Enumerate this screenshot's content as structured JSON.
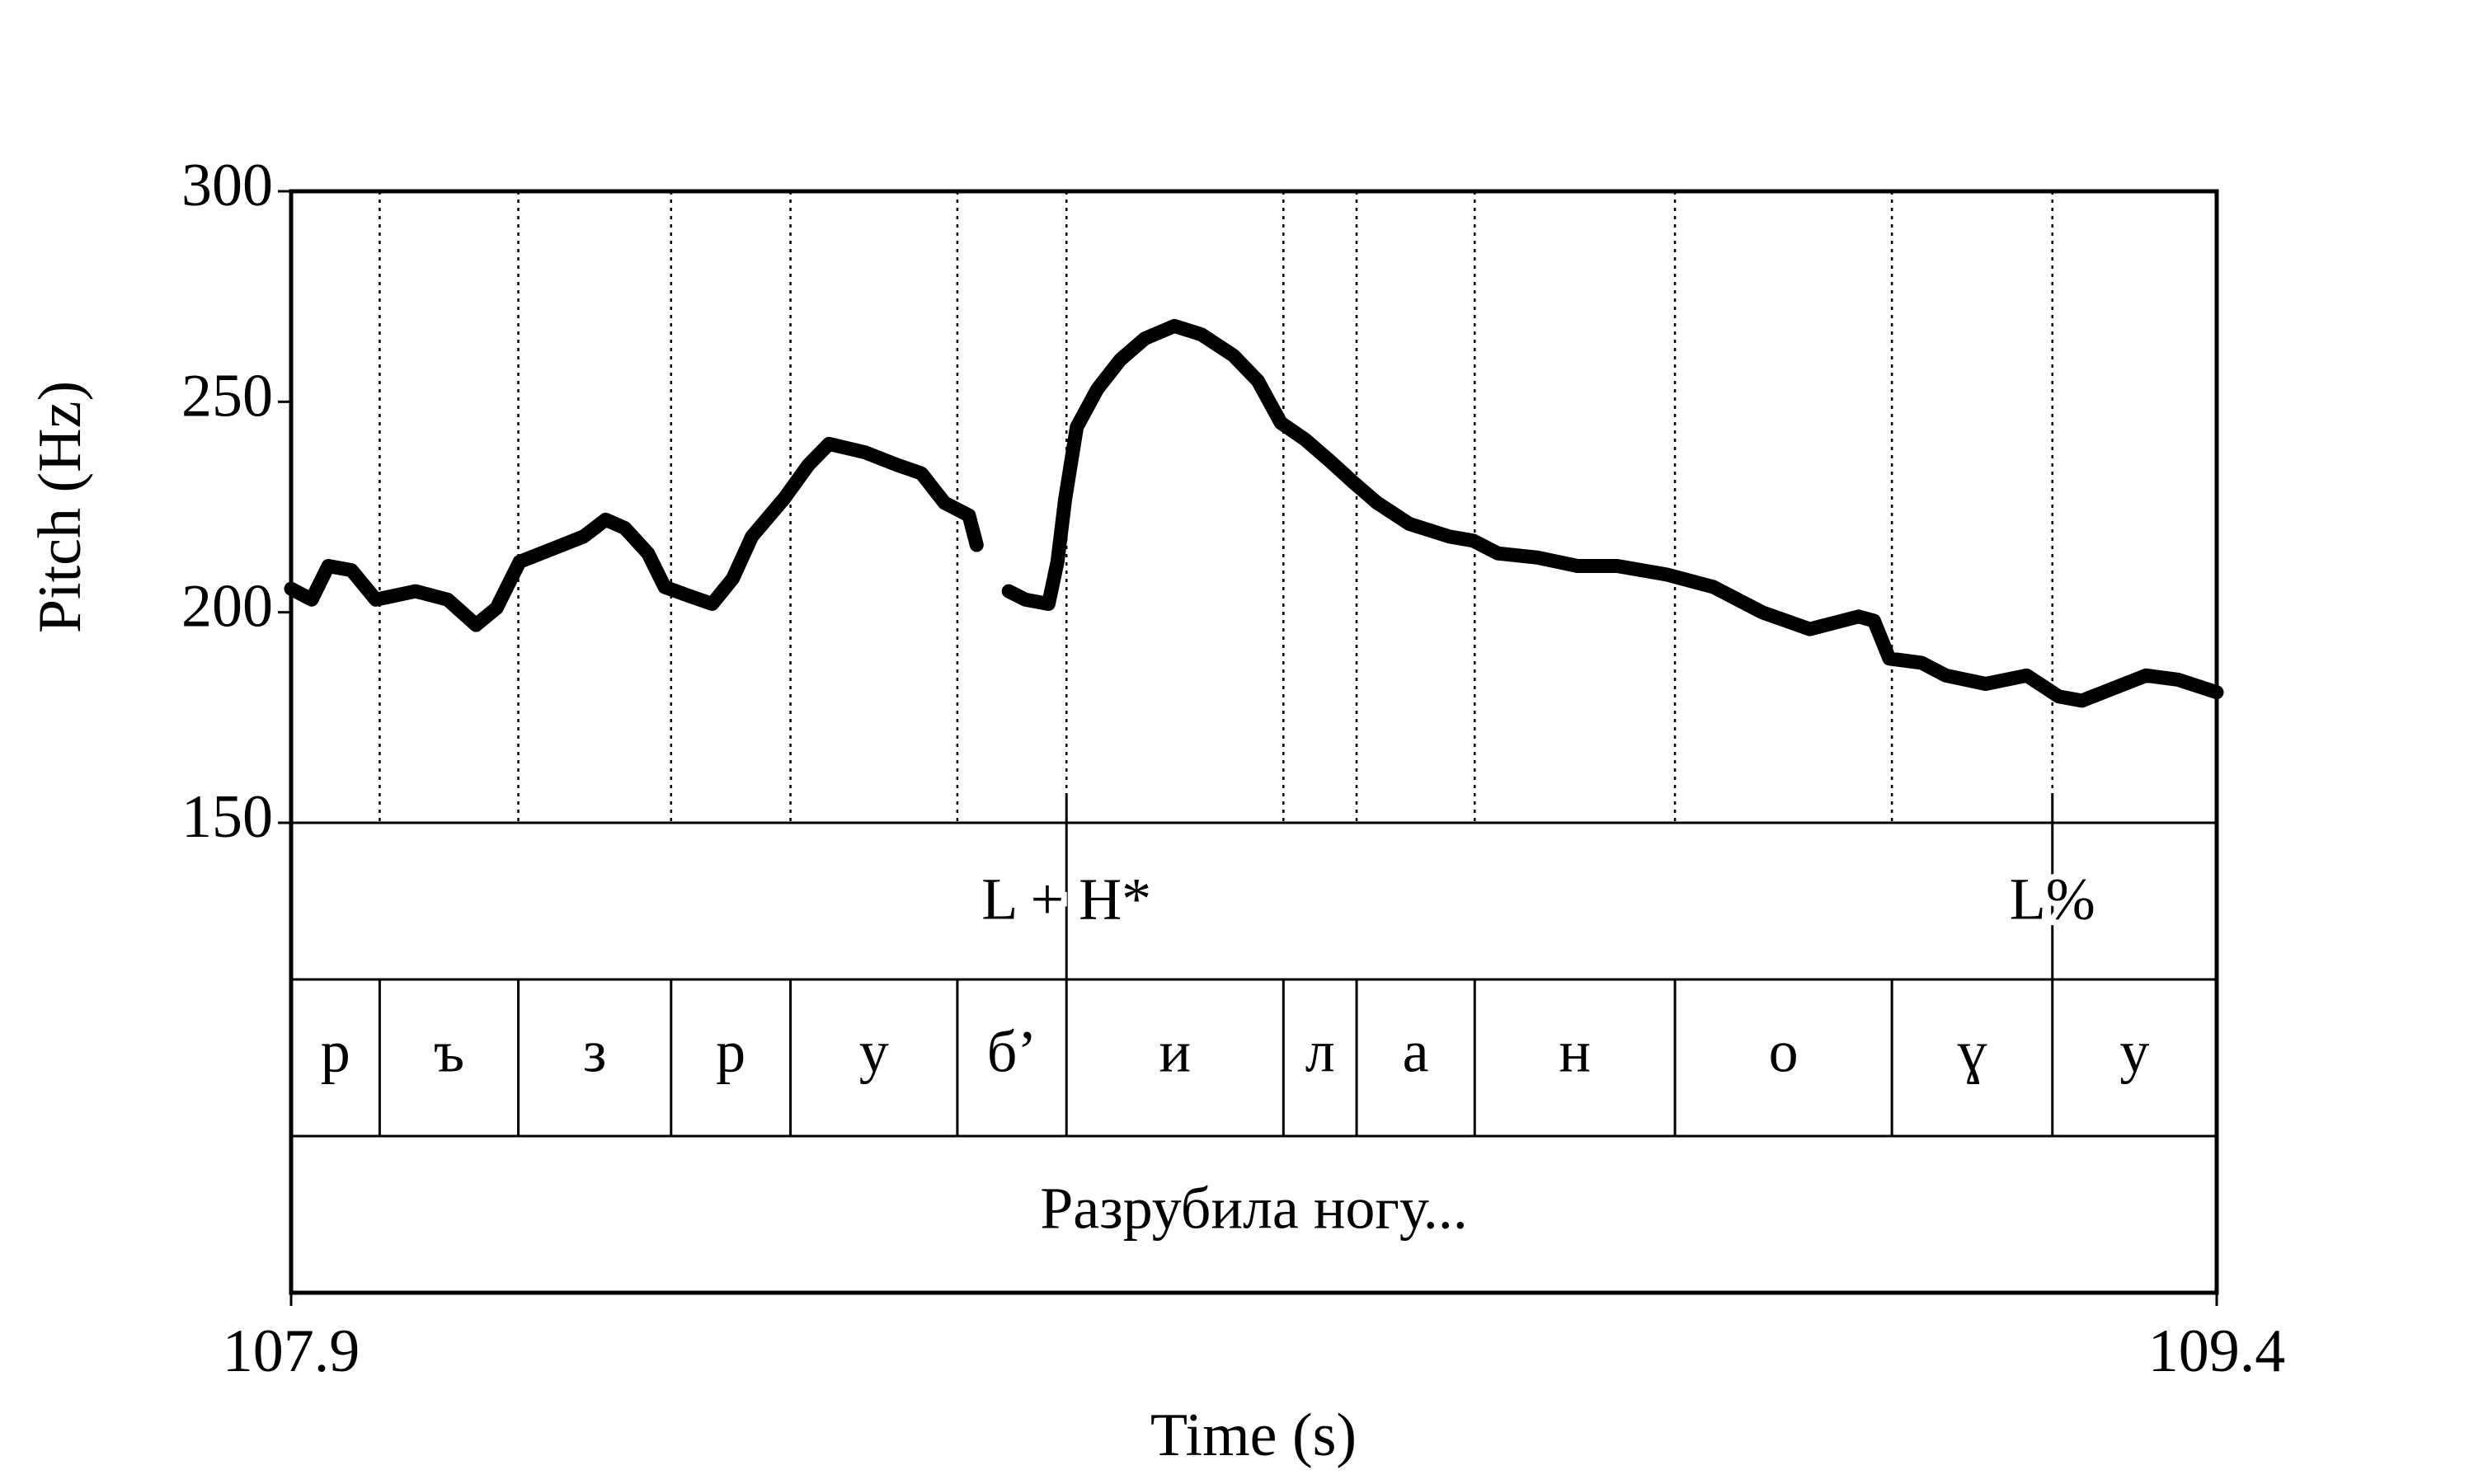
{
  "chart_data": {
    "type": "line",
    "y_label": "Pitch (Hz)",
    "x_label": "Time (s)",
    "xlim": [
      107.9,
      109.4
    ],
    "ylim": [
      150,
      300
    ],
    "xticks": [
      107.9,
      109.4
    ],
    "yticks": [
      150,
      200,
      250,
      300
    ],
    "color": "#000000",
    "x": [
      107.9,
      107.916,
      107.929,
      107.947,
      107.966,
      107.997,
      108.022,
      108.044,
      108.06,
      108.078,
      108.103,
      108.128,
      108.145,
      108.16,
      108.178,
      108.191,
      108.209,
      108.228,
      108.244,
      108.259,
      108.284,
      108.303,
      108.319,
      108.347,
      108.372,
      108.391,
      108.409,
      108.428,
      108.434,
      108.446,
      108.459,
      108.472,
      108.49,
      108.497,
      108.503,
      108.512,
      108.528,
      108.546,
      108.565,
      108.588,
      108.609,
      108.634,
      108.653,
      108.671,
      108.69,
      108.709,
      108.727,
      108.746,
      108.771,
      108.802,
      108.821,
      108.84,
      108.871,
      108.902,
      108.933,
      108.971,
      109.008,
      109.046,
      109.083,
      109.121,
      109.133,
      109.145,
      109.17,
      109.189,
      109.22,
      109.252,
      109.277,
      109.295,
      109.32,
      109.345,
      109.37,
      109.4
    ],
    "values": [
      205.6,
      203,
      211,
      210,
      203,
      205,
      203,
      197,
      201,
      212,
      215,
      218,
      222,
      220,
      214,
      206,
      204,
      202,
      208,
      218,
      227,
      235,
      240,
      238,
      235,
      233,
      226,
      223,
      216,
      null,
      205,
      203,
      202,
      212,
      227,
      244,
      253,
      260,
      265,
      268,
      266,
      261,
      255,
      245,
      241,
      236,
      231,
      226,
      221,
      218,
      217,
      214,
      213,
      211,
      211,
      209,
      206,
      200,
      196,
      199,
      198,
      189,
      188,
      185,
      183,
      185,
      180,
      179,
      182,
      185,
      184,
      181
    ],
    "tones": [
      {
        "label": "L + H*",
        "time": 108.504
      },
      {
        "label": "L%",
        "time": 109.272
      }
    ],
    "segments": {
      "boundaries": [
        107.969,
        108.077,
        108.196,
        108.289,
        108.419,
        108.504,
        108.673,
        108.73,
        108.822,
        108.978,
        109.147,
        109.272
      ],
      "labels": [
        "р",
        "ъ",
        "з",
        "р",
        "у",
        "б’",
        "и",
        "л",
        "а",
        "н",
        "о",
        "ɣ",
        "у"
      ]
    },
    "utterance": "Разрубила ногу..."
  }
}
